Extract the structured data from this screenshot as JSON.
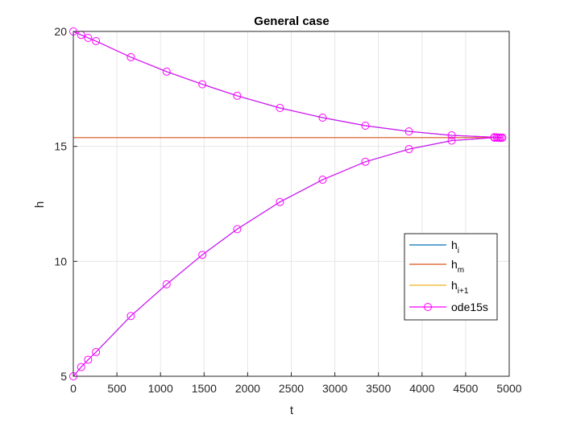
{
  "chart_data": {
    "type": "line",
    "title": "General case",
    "xlabel": "t",
    "ylabel": "h",
    "xlim": [
      0,
      5000
    ],
    "ylim": [
      5,
      20
    ],
    "xticks": [
      0,
      500,
      1000,
      1500,
      2000,
      2500,
      3000,
      3500,
      4000,
      4500,
      5000
    ],
    "yticks": [
      5,
      10,
      15,
      20
    ],
    "grid": true,
    "legend_position": "east",
    "colors": {
      "h_i": "#0072BD",
      "h_m": "#D95319",
      "h_i1": "#EDB120",
      "ode15s": "#FF00FF",
      "grid": "#e6e6e6",
      "axes": "#262626"
    },
    "series": [
      {
        "key": "h_i",
        "name": "h",
        "subscript": "i",
        "x": [
          0,
          90,
          170,
          260,
          660,
          1070,
          1480,
          1880,
          2370,
          2860,
          3350,
          3850,
          4340,
          4830,
          4900
        ],
        "y": [
          5.0,
          5.4,
          5.72,
          6.05,
          7.62,
          9.0,
          10.28,
          11.4,
          12.58,
          13.55,
          14.33,
          14.88,
          15.25,
          15.38,
          15.38
        ]
      },
      {
        "key": "h_i_upper",
        "name": "",
        "x": [
          0,
          90,
          170,
          260,
          660,
          1070,
          1480,
          1880,
          2370,
          2860,
          3350,
          3850,
          4340,
          4830,
          4900
        ],
        "y": [
          20.0,
          19.85,
          19.72,
          19.58,
          18.88,
          18.25,
          17.7,
          17.2,
          16.67,
          16.25,
          15.9,
          15.65,
          15.48,
          15.4,
          15.38
        ]
      },
      {
        "key": "h_m",
        "name": "h",
        "subscript": "m",
        "x": [
          0,
          4900
        ],
        "y": [
          15.38,
          15.38
        ]
      },
      {
        "key": "h_i1",
        "name": "h",
        "subscript": "i+1",
        "x": [],
        "y": []
      },
      {
        "key": "ode15s",
        "name": "ode15s",
        "markers": true,
        "x": [
          0,
          90,
          170,
          260,
          660,
          1070,
          1480,
          1880,
          2370,
          2860,
          3350,
          3850,
          4340,
          4830,
          4860,
          4880,
          4900,
          4920
        ],
        "y": [
          5.0,
          5.4,
          5.72,
          6.05,
          7.62,
          9.0,
          10.28,
          11.4,
          12.58,
          13.55,
          14.33,
          14.88,
          15.25,
          15.38,
          15.38,
          15.38,
          15.38,
          15.38
        ],
        "y_upper": [
          20.0,
          19.85,
          19.72,
          19.58,
          18.88,
          18.25,
          17.7,
          17.2,
          16.67,
          16.25,
          15.9,
          15.65,
          15.48,
          15.4,
          15.39,
          15.38,
          15.38,
          15.38
        ]
      }
    ]
  }
}
